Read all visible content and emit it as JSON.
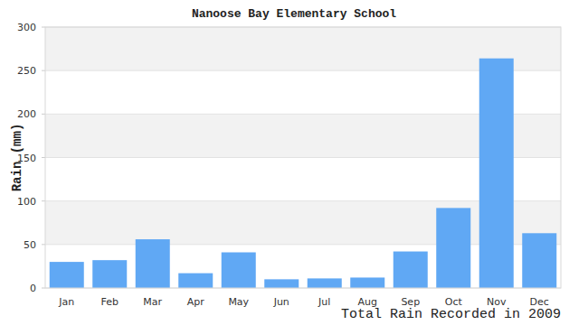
{
  "chart_data": {
    "type": "bar",
    "title": "Nanoose Bay Elementary School",
    "x_label": "Total Rain Recorded in 2009",
    "y_label": "Rain (mm)",
    "categories": [
      "Jan",
      "Feb",
      "Mar",
      "Apr",
      "May",
      "Jun",
      "Jul",
      "Aug",
      "Sep",
      "Oct",
      "Nov",
      "Dec"
    ],
    "values": [
      30,
      32,
      56,
      17,
      41,
      10,
      11,
      12,
      42,
      92,
      264,
      63
    ],
    "color": "#60a8f4",
    "ylim": [
      0,
      300
    ],
    "yticks": [
      0,
      50,
      100,
      150,
      200,
      250,
      300
    ],
    "grid": true
  }
}
